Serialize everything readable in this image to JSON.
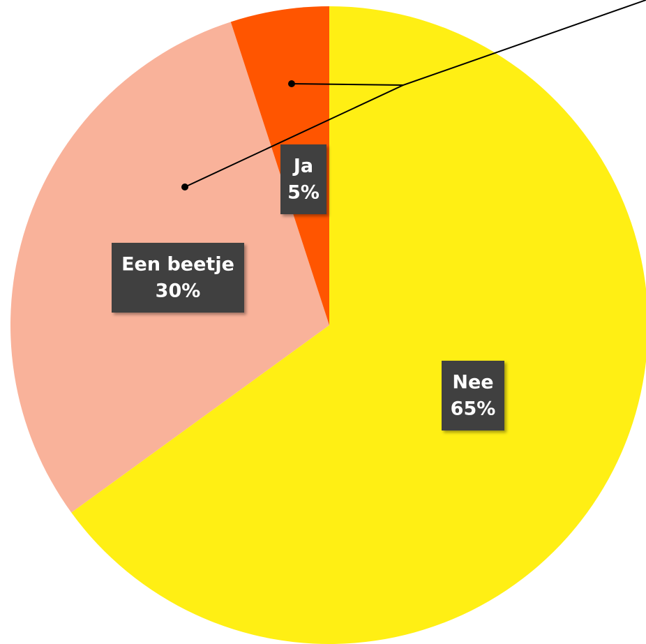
{
  "chart_data": {
    "type": "pie",
    "categories": [
      "Nee",
      "Een beetje",
      "Ja"
    ],
    "values": [
      65,
      30,
      5
    ],
    "value_labels": [
      "65%",
      "30%",
      "5%"
    ],
    "colors": [
      "#FFEF14",
      "#F9B29A",
      "#FF5500"
    ]
  }
}
